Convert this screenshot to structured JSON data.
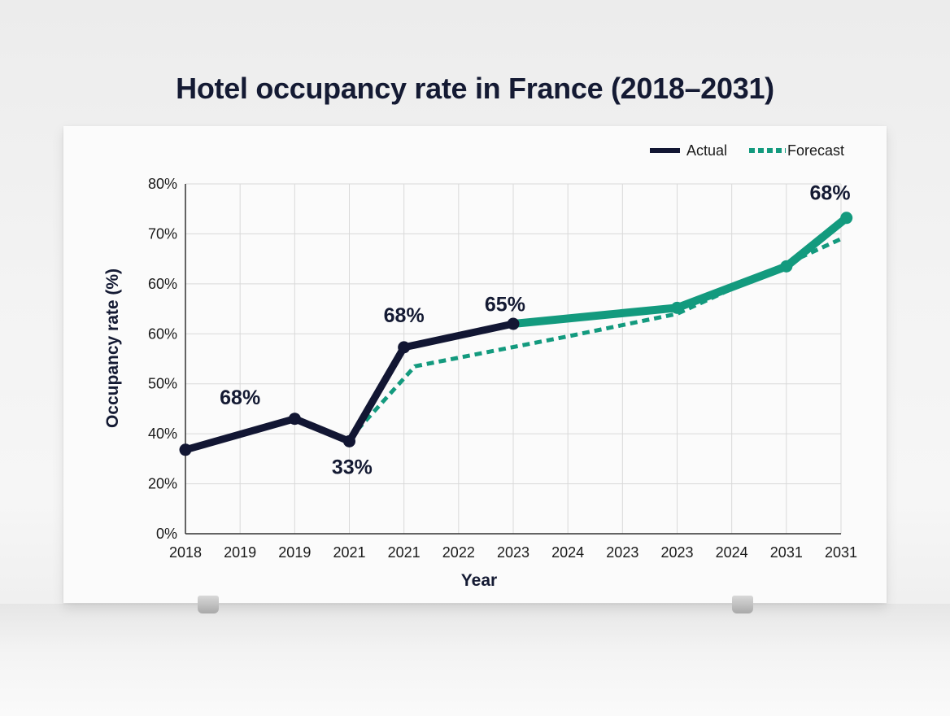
{
  "chart_data": {
    "type": "line",
    "title": "Hotel occupancy rate in France (2018–2031)",
    "xlabel": "Year",
    "ylabel": "Occupancy rate (%)",
    "categories": [
      "2018",
      "2019",
      "2019",
      "2021",
      "2021",
      "2022",
      "2023",
      "2024",
      "2023",
      "2023",
      "2024",
      "2031",
      "2031"
    ],
    "y_ticks": [
      "0%",
      "20%",
      "40%",
      "50%",
      "60%",
      "60%",
      "70%",
      "80%"
    ],
    "grid": true,
    "legend_position": "top-right",
    "series": [
      {
        "name": "Actual",
        "style": "solid",
        "color": "#121633",
        "points": [
          {
            "category_index": 0,
            "level": 1.68
          },
          {
            "category_index": 2,
            "level": 2.3
          },
          {
            "category_index": 3,
            "level": 1.85
          },
          {
            "category_index": 4,
            "level": 3.73
          },
          {
            "category_index": 6,
            "level": 4.2
          }
        ]
      },
      {
        "name": "Forecast",
        "style": "dashed",
        "color": "#139a7e",
        "points": [
          {
            "category_index": 3,
            "level": 1.9
          },
          {
            "category_index": 4.2,
            "level": 3.35
          },
          {
            "category_index": 7,
            "level": 3.95
          },
          {
            "category_index": 9,
            "level": 4.4
          },
          {
            "category_index": 10,
            "level": 4.9
          },
          {
            "category_index": 12,
            "level": 5.9
          }
        ]
      },
      {
        "name": "",
        "style": "solid",
        "color": "#139a7e",
        "points": [
          {
            "category_index": 6,
            "level": 4.2
          },
          {
            "category_index": 9,
            "level": 4.52
          },
          {
            "category_index": 11,
            "level": 5.35
          },
          {
            "category_index": 12.1,
            "level": 6.32
          }
        ]
      }
    ],
    "annotations": [
      {
        "text": "68%",
        "category_index": 1,
        "level": 2.59
      },
      {
        "text": "33%",
        "category_index": 3.05,
        "level": 1.2
      },
      {
        "text": "68%",
        "category_index": 4,
        "level": 4.23
      },
      {
        "text": "65%",
        "category_index": 5.85,
        "level": 4.45
      },
      {
        "text": "68%",
        "category_index": 11.8,
        "level": 6.68
      }
    ]
  }
}
